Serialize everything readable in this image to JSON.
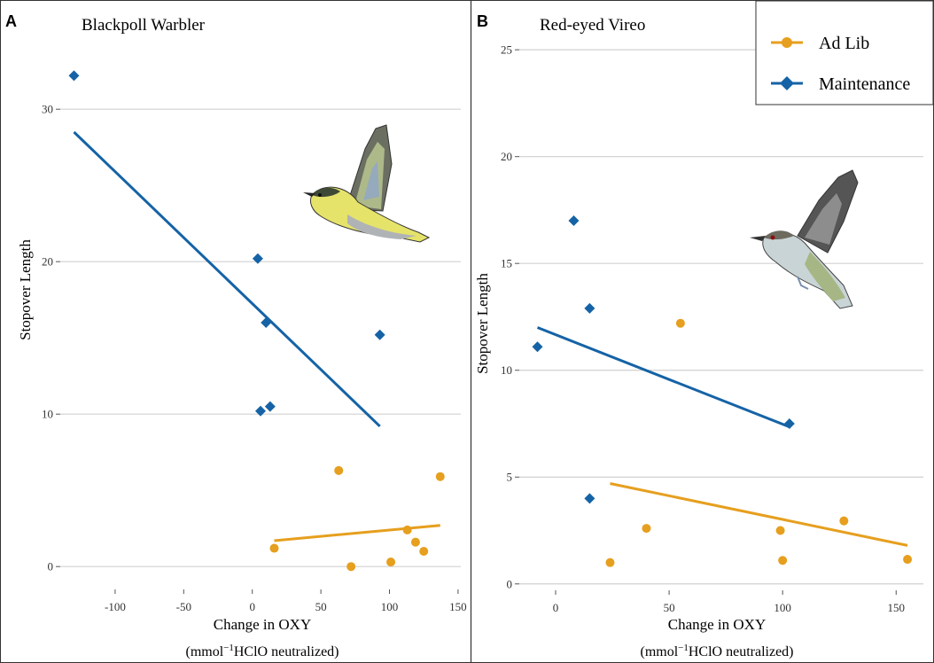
{
  "colors": {
    "ad_lib": "#E69F1E",
    "maintenance": "#1563A6",
    "grid": "#D0D0D0",
    "frame": "#333333"
  },
  "legend": {
    "placement": "top-right",
    "items": [
      "Ad Lib",
      "Maintenance"
    ]
  },
  "chart_data": [
    {
      "type": "scatter",
      "panel_letter": "A",
      "title": "Blackpoll Warbler",
      "xlabel": "Change in OXY",
      "xlabel_sub": "(mmol",
      "xlabel_sup": "−1",
      "xlabel_tail": "HClO neutralized)",
      "ylabel": "Stopover Length",
      "xlim": [
        -140,
        152
      ],
      "ylim": [
        -1.5,
        36
      ],
      "xticks": [
        -100,
        -50,
        0,
        50,
        100,
        150
      ],
      "yticks": [
        0,
        10,
        20,
        30
      ],
      "grid": "horizontal",
      "series": [
        {
          "name": "Ad Lib",
          "marker": "circle",
          "x": [
            16,
            63,
            72,
            101,
            113,
            119,
            125,
            137
          ],
          "y": [
            1.2,
            6.3,
            0.0,
            0.3,
            2.4,
            1.6,
            1.0,
            5.9
          ],
          "fit": [
            [
              16,
              1.7
            ],
            [
              137,
              2.7
            ]
          ]
        },
        {
          "name": "Maintenance",
          "marker": "diamond",
          "x": [
            -130,
            4,
            6,
            10,
            13,
            93
          ],
          "y": [
            32.2,
            20.2,
            10.2,
            16.0,
            10.5,
            15.2
          ],
          "fit": [
            [
              -130,
              28.5
            ],
            [
              93,
              9.2
            ]
          ]
        }
      ]
    },
    {
      "type": "scatter",
      "panel_letter": "B",
      "title": "Red-eyed Vireo",
      "xlabel": "Change in OXY",
      "xlabel_sub": "(mmol",
      "xlabel_sup": "−1",
      "xlabel_tail": "HClO neutralized)",
      "ylabel": "Stopover Length",
      "xlim": [
        -16,
        162
      ],
      "ylim": [
        -0.3,
        26.5
      ],
      "xticks": [
        0,
        50,
        100,
        150
      ],
      "yticks": [
        0,
        5,
        10,
        15,
        20,
        25
      ],
      "grid": "horizontal",
      "series": [
        {
          "name": "Ad Lib",
          "marker": "circle",
          "x": [
            24,
            40,
            55,
            99,
            100,
            127,
            155
          ],
          "y": [
            1.0,
            2.6,
            12.2,
            2.5,
            1.1,
            2.95,
            1.15
          ],
          "fit": [
            [
              24,
              4.7
            ],
            [
              155,
              1.8
            ]
          ]
        },
        {
          "name": "Maintenance",
          "marker": "diamond",
          "x": [
            -8,
            8,
            15,
            15,
            103
          ],
          "y": [
            11.1,
            17.0,
            12.9,
            4.0,
            7.5
          ],
          "fit": [
            [
              -8,
              12.0
            ],
            [
              103,
              7.35
            ]
          ]
        }
      ]
    }
  ],
  "illustrations": [
    "blackpoll-warbler-illustration",
    "red-eyed-vireo-illustration"
  ]
}
